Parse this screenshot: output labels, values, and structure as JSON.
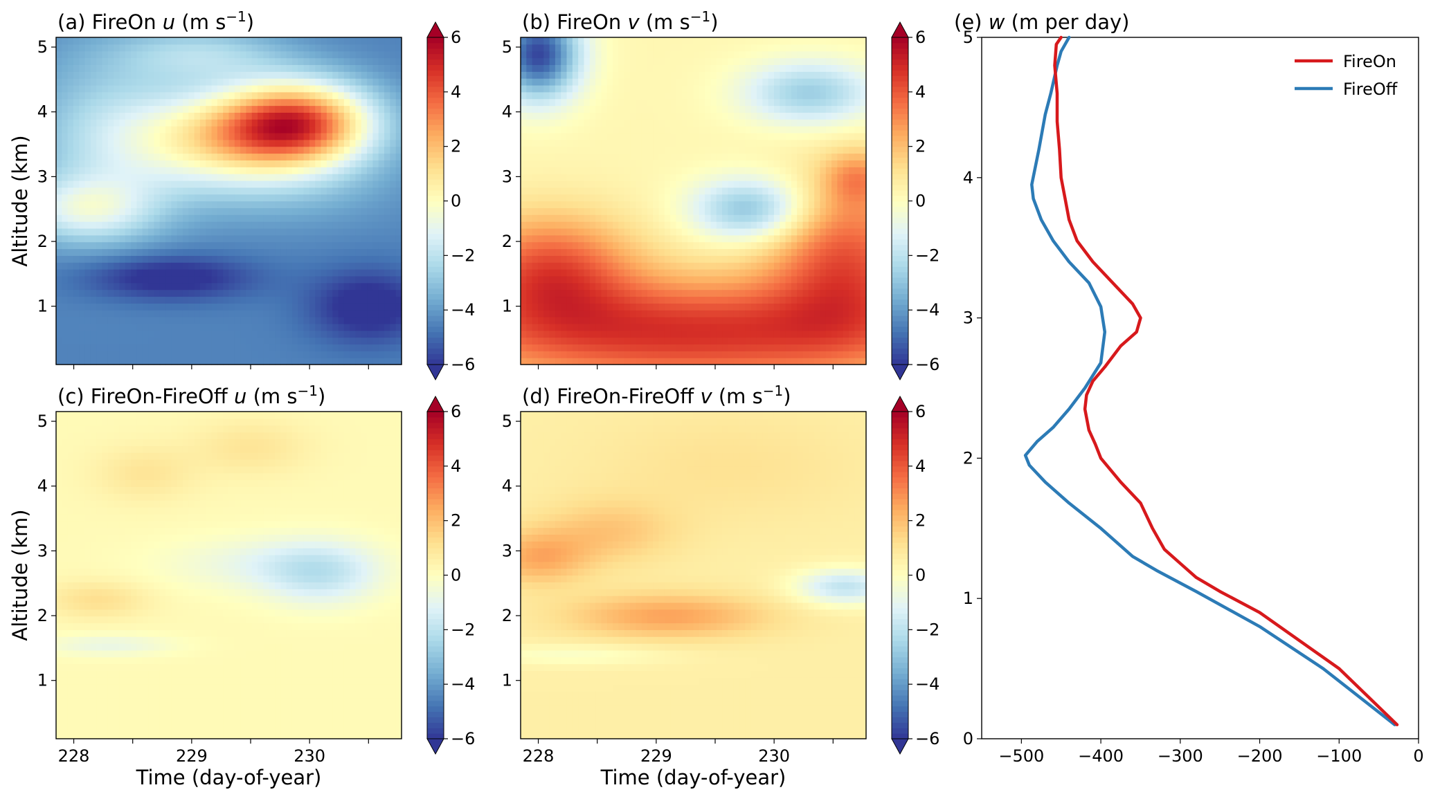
{
  "colors": {
    "fireon": "#d7191c",
    "fireoff": "#2c7bb6",
    "cmap": [
      "#313695",
      "#4575b4",
      "#74add1",
      "#abd9e9",
      "#e0f3f8",
      "#ffffbf",
      "#fee090",
      "#fdae61",
      "#f46d43",
      "#d73027",
      "#a50026"
    ]
  },
  "chart_data": [
    {
      "id": "a",
      "type": "heatmap",
      "title": "(a) FireOn ",
      "title_var": "u",
      "title_unit": " (m s",
      "title_sup": "−1",
      "title_close": ")",
      "ylabel": "Altitude (km)",
      "xlabel": "",
      "xlim": [
        227.85,
        230.78
      ],
      "ylim": [
        0.1,
        5.15
      ],
      "x_ticks": [
        228,
        229,
        230
      ],
      "x_tick_labels": [],
      "x_minor_ticks": [
        228,
        228.5,
        229,
        229.5,
        230,
        230.5
      ],
      "y_ticks": [
        1,
        2,
        3,
        4,
        5
      ],
      "y_tick_labels": [
        "1",
        "2",
        "3",
        "4",
        "5"
      ],
      "base": -4.5,
      "blobs": [
        {
          "x": 229.9,
          "y": 3.85,
          "sx": 0.45,
          "sy": 0.45,
          "v": 7.5
        },
        {
          "x": 229.3,
          "y": 3.6,
          "sx": 0.6,
          "sy": 0.5,
          "v": 4.5
        },
        {
          "x": 228.3,
          "y": 3.6,
          "sx": 0.5,
          "sy": 1.0,
          "v": 2.0
        },
        {
          "x": 228.1,
          "y": 2.5,
          "sx": 0.4,
          "sy": 0.35,
          "v": 3.0
        },
        {
          "x": 229.1,
          "y": 4.9,
          "sx": 0.5,
          "sy": 0.3,
          "v": 2.0
        },
        {
          "x": 228.8,
          "y": 1.45,
          "sx": 0.5,
          "sy": 0.25,
          "v": -2.0
        },
        {
          "x": 230.5,
          "y": 1.0,
          "sx": 0.35,
          "sy": 0.4,
          "v": -2.0
        },
        {
          "x": 229.8,
          "y": 2.9,
          "sx": 0.7,
          "sy": 0.5,
          "v": 1.0
        }
      ]
    },
    {
      "id": "b",
      "type": "heatmap",
      "title": "(b) FireOn ",
      "title_var": "v",
      "title_unit": " (m s",
      "title_sup": "−1",
      "title_close": ")",
      "ylabel": "",
      "xlabel": "",
      "xlim": [
        227.85,
        230.78
      ],
      "ylim": [
        0.1,
        5.15
      ],
      "x_ticks": [
        228,
        229,
        230
      ],
      "x_tick_labels": [],
      "x_minor_ticks": [
        228,
        228.5,
        229,
        229.5,
        230,
        230.5
      ],
      "y_ticks": [
        1,
        2,
        3,
        4,
        5
      ],
      "y_tick_labels": [
        "1",
        "2",
        "3",
        "4",
        "5"
      ],
      "base": 0.3,
      "blobs": [
        {
          "x": 229.3,
          "y": 0.6,
          "sx": 1.6,
          "sy": 0.6,
          "v": 4.5
        },
        {
          "x": 228.1,
          "y": 1.6,
          "sx": 0.5,
          "sy": 0.6,
          "v": 3.5
        },
        {
          "x": 230.6,
          "y": 1.8,
          "sx": 0.45,
          "sy": 0.8,
          "v": 3.5
        },
        {
          "x": 229.8,
          "y": 2.5,
          "sx": 0.35,
          "sy": 0.35,
          "v": -3.5
        },
        {
          "x": 230.3,
          "y": 4.3,
          "sx": 0.4,
          "sy": 0.35,
          "v": -3.0
        },
        {
          "x": 228.0,
          "y": 4.9,
          "sx": 0.25,
          "sy": 0.5,
          "v": -6.0
        },
        {
          "x": 230.7,
          "y": 3.0,
          "sx": 0.2,
          "sy": 0.3,
          "v": 2.0
        }
      ]
    },
    {
      "id": "c",
      "type": "heatmap",
      "title": "(c) FireOn-FireOff ",
      "title_var": "u",
      "title_unit": " (m s",
      "title_sup": "−1",
      "title_close": ")",
      "ylabel": "Altitude (km)",
      "xlabel": "Time (day-of-year)",
      "xlim": [
        227.85,
        230.78
      ],
      "ylim": [
        0.1,
        5.15
      ],
      "x_ticks": [
        228,
        229,
        230
      ],
      "x_tick_labels": [
        "228",
        "229",
        "230"
      ],
      "x_minor_ticks": [
        228,
        228.5,
        229,
        229.5,
        230,
        230.5
      ],
      "y_ticks": [
        1,
        2,
        3,
        4,
        5
      ],
      "y_tick_labels": [
        "1",
        "2",
        "3",
        "4",
        "5"
      ],
      "base": 0.2,
      "blobs": [
        {
          "x": 230.1,
          "y": 2.65,
          "sx": 0.35,
          "sy": 0.35,
          "v": -1.8
        },
        {
          "x": 229.6,
          "y": 2.8,
          "sx": 0.6,
          "sy": 0.3,
          "v": -1.0
        },
        {
          "x": 228.2,
          "y": 2.25,
          "sx": 0.3,
          "sy": 0.2,
          "v": 1.0
        },
        {
          "x": 228.6,
          "y": 4.2,
          "sx": 0.3,
          "sy": 0.3,
          "v": 0.8
        },
        {
          "x": 229.5,
          "y": 4.6,
          "sx": 0.35,
          "sy": 0.3,
          "v": 0.8
        },
        {
          "x": 228.3,
          "y": 1.55,
          "sx": 0.4,
          "sy": 0.12,
          "v": -1.0
        }
      ]
    },
    {
      "id": "d",
      "type": "heatmap",
      "title": "(d) FireOn-FireOff ",
      "title_var": "v",
      "title_unit": " (m s",
      "title_sup": "−1",
      "title_close": ")",
      "ylabel": "",
      "xlabel": "Time (day-of-year)",
      "xlim": [
        227.85,
        230.78
      ],
      "ylim": [
        0.1,
        5.15
      ],
      "x_ticks": [
        228,
        229,
        230
      ],
      "x_tick_labels": [
        "228",
        "229",
        "230"
      ],
      "x_minor_ticks": [
        228,
        228.5,
        229,
        229.5,
        230,
        230.5
      ],
      "y_ticks": [
        1,
        2,
        3,
        4,
        5
      ],
      "y_tick_labels": [
        "1",
        "2",
        "3",
        "4",
        "5"
      ],
      "base": 0.6,
      "blobs": [
        {
          "x": 229.1,
          "y": 2.0,
          "sx": 0.6,
          "sy": 0.25,
          "v": 2.0
        },
        {
          "x": 228.0,
          "y": 2.9,
          "sx": 0.3,
          "sy": 0.3,
          "v": 1.8
        },
        {
          "x": 228.6,
          "y": 3.3,
          "sx": 0.4,
          "sy": 0.35,
          "v": 1.2
        },
        {
          "x": 230.6,
          "y": 2.45,
          "sx": 0.3,
          "sy": 0.2,
          "v": -2.5
        },
        {
          "x": 228.3,
          "y": 1.4,
          "sx": 0.6,
          "sy": 0.12,
          "v": -0.8
        },
        {
          "x": 229.6,
          "y": 4.3,
          "sx": 0.8,
          "sy": 0.6,
          "v": 0.5
        }
      ]
    },
    {
      "id": "e",
      "type": "line",
      "title": "(e) ",
      "title_var": "w",
      "title_unit": " (m per day)",
      "xlim": [
        -550,
        0
      ],
      "ylim": [
        0,
        5
      ],
      "x_ticks": [
        -500,
        -400,
        -300,
        -200,
        -100,
        0
      ],
      "x_tick_labels": [
        "−500",
        "−400",
        "−300",
        "−200",
        "−100",
        "0"
      ],
      "y_ticks": [
        0,
        1,
        2,
        3,
        4,
        5
      ],
      "y_tick_labels": [
        "0",
        "1",
        "2",
        "3",
        "4",
        "5"
      ],
      "legend_position": "upper right",
      "series": [
        {
          "name": "FireOn",
          "x": [
            -27,
            -100,
            -200,
            -250,
            -280,
            -300,
            -320,
            -335,
            -350,
            -375,
            -400,
            -407,
            -415,
            -420,
            -418,
            -410,
            -395,
            -375,
            -355,
            -350,
            -360,
            -385,
            -410,
            -430,
            -440,
            -445,
            -450,
            -452,
            -455,
            -455,
            -458,
            -456,
            -450
          ],
          "y": [
            0.1,
            0.5,
            0.9,
            1.05,
            1.15,
            1.25,
            1.35,
            1.5,
            1.68,
            1.83,
            2.0,
            2.1,
            2.2,
            2.35,
            2.45,
            2.55,
            2.65,
            2.8,
            2.9,
            3.0,
            3.1,
            3.25,
            3.4,
            3.55,
            3.7,
            3.85,
            4.0,
            4.2,
            4.4,
            4.6,
            4.8,
            4.95,
            5.0
          ]
        },
        {
          "name": "FireOff",
          "x": [
            -30,
            -120,
            -200,
            -280,
            -330,
            -360,
            -400,
            -440,
            -470,
            -490,
            -495,
            -480,
            -460,
            -440,
            -420,
            -400,
            -395,
            -400,
            -415,
            -440,
            -460,
            -475,
            -485,
            -487,
            -478,
            -470,
            -463,
            -455,
            -450,
            -440
          ],
          "y": [
            0.1,
            0.5,
            0.8,
            1.05,
            1.2,
            1.3,
            1.5,
            1.68,
            1.83,
            1.95,
            2.02,
            2.12,
            2.22,
            2.35,
            2.5,
            2.68,
            2.9,
            3.08,
            3.25,
            3.4,
            3.55,
            3.7,
            3.85,
            3.95,
            4.2,
            4.45,
            4.6,
            4.8,
            4.9,
            5.0
          ]
        }
      ]
    }
  ],
  "colorbar": {
    "ticks": [
      6,
      4,
      2,
      0,
      -2,
      -4,
      -6
    ],
    "tick_labels": [
      "6",
      "4",
      "2",
      "0",
      "−2",
      "−4",
      "−6"
    ],
    "range": [
      -6,
      6
    ]
  }
}
